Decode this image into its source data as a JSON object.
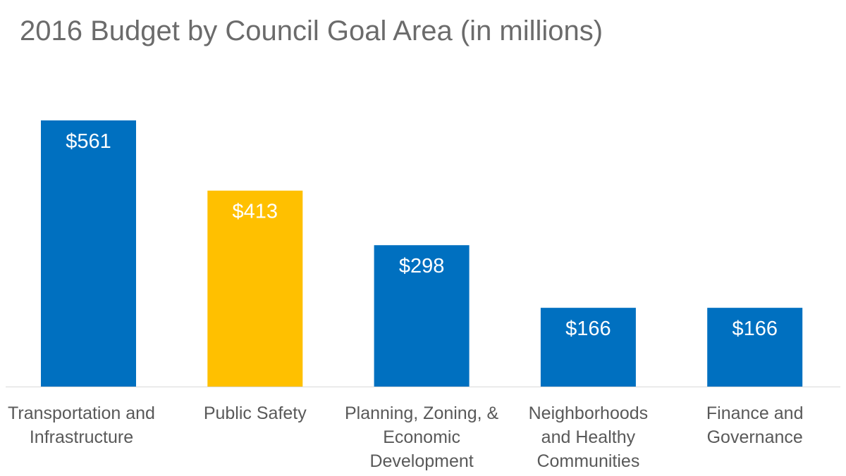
{
  "chart_data": {
    "type": "bar",
    "title": "2016 Budget by Council Goal Area (in millions)",
    "categories": [
      [
        "Transportation and",
        "Infrastructure"
      ],
      [
        "Public Safety"
      ],
      [
        "Planning, Zoning, &",
        "Economic",
        "Development"
      ],
      [
        "Neighborhoods",
        "and Healthy",
        "Communities"
      ],
      [
        "Finance and",
        "Governance"
      ]
    ],
    "values": [
      561,
      413,
      298,
      166,
      166
    ],
    "data_labels": [
      "$561",
      "$413",
      "$298",
      "$166",
      "$166"
    ],
    "colors": [
      "#0070C0",
      "#FFC000",
      "#0070C0",
      "#0070C0",
      "#0070C0"
    ],
    "xlabel": "",
    "ylabel": "",
    "ylim": [
      0,
      561
    ],
    "grid": false
  }
}
